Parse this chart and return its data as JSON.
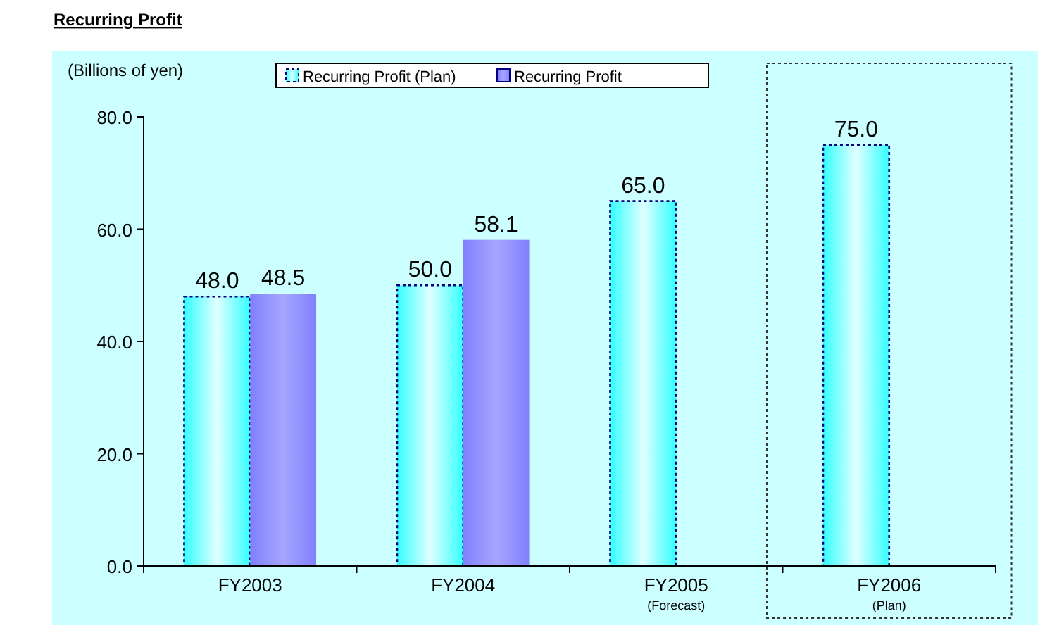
{
  "chart_data": {
    "type": "bar",
    "title": "Recurring Profit",
    "ylabel": "(Billions of yen)",
    "categories": [
      "FY2003",
      "FY2004",
      "FY2005\n(Forecast)",
      "FY2006\n(Plan)"
    ],
    "series": [
      {
        "name": "Recurring Profit (Plan)",
        "color": "#33ffff",
        "line_style": "dotted",
        "values": [
          48.0,
          50.0,
          65.0,
          75.0
        ],
        "value_labels": [
          "48.0",
          "50.0",
          "65.0",
          "75.0"
        ]
      },
      {
        "name": "Recurring Profit",
        "color": "#8080ff",
        "values": [
          48.5,
          58.1,
          null,
          null
        ],
        "value_labels": [
          "48.5",
          "58.1",
          null,
          null
        ]
      }
    ],
    "ylim": [
      0,
      80
    ],
    "yticks": [
      {
        "value": 0,
        "label": "0.0"
      },
      {
        "value": 20,
        "label": "20.0"
      },
      {
        "value": 40,
        "label": "40.0"
      },
      {
        "value": 60,
        "label": "60.0"
      },
      {
        "value": 80,
        "label": "80.0"
      }
    ],
    "legend": "top",
    "grid": false
  }
}
